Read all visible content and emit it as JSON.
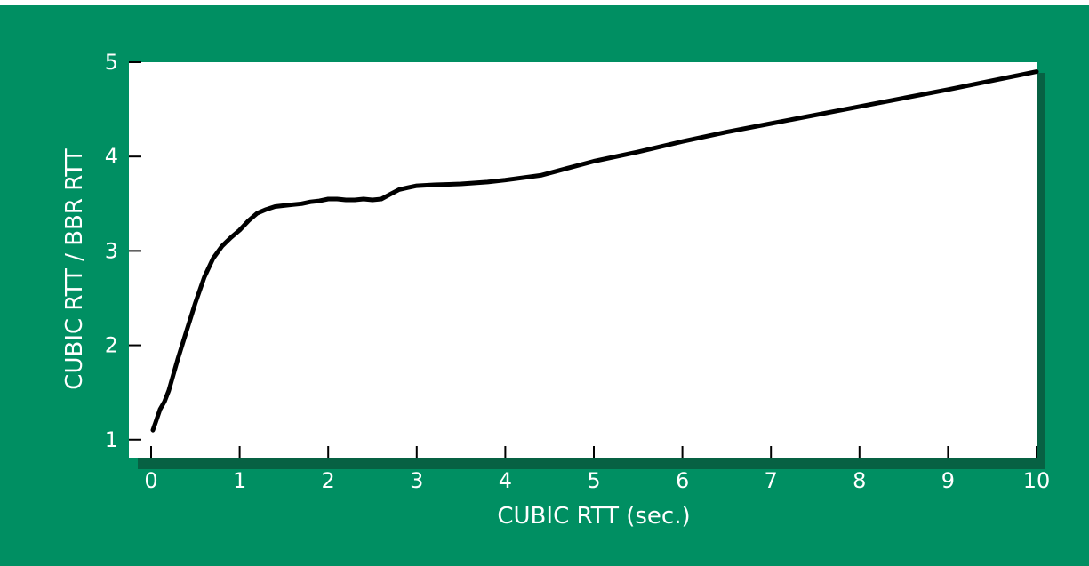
{
  "colors": {
    "panel": "#008f62",
    "plot_bg": "#ffffff",
    "line": "#000000",
    "text": "#ffffff",
    "shadow": "#0c3d2a"
  },
  "chart_data": {
    "type": "line",
    "xlabel": "CUBIC RTT (sec.)",
    "ylabel": "CUBIC RTT / BBR RTT",
    "xlim": [
      0,
      10
    ],
    "ylim": [
      0.8,
      5
    ],
    "xticks": [
      "0",
      "1",
      "2",
      "3",
      "4",
      "5",
      "6",
      "7",
      "8",
      "9",
      "10"
    ],
    "yticks": [
      "1",
      "2",
      "3",
      "4",
      "5"
    ],
    "grid": false,
    "series": [
      {
        "x": [
          0.02,
          0.05,
          0.1,
          0.15,
          0.2,
          0.3,
          0.4,
          0.5,
          0.6,
          0.7,
          0.8,
          0.9,
          1.0,
          1.1,
          1.2,
          1.3,
          1.4,
          1.5,
          1.6,
          1.7,
          1.8,
          1.9,
          2.0,
          2.1,
          2.2,
          2.3,
          2.4,
          2.5,
          2.6,
          2.7,
          2.8,
          2.9,
          3.0,
          3.2,
          3.5,
          3.8,
          4.0,
          4.4,
          5.0,
          5.5,
          6.0,
          6.5,
          7.0,
          8.0,
          9.0,
          10.0
        ],
        "y": [
          1.1,
          1.18,
          1.32,
          1.4,
          1.52,
          1.85,
          2.15,
          2.45,
          2.72,
          2.92,
          3.05,
          3.14,
          3.22,
          3.32,
          3.4,
          3.44,
          3.47,
          3.48,
          3.49,
          3.5,
          3.52,
          3.53,
          3.55,
          3.55,
          3.54,
          3.54,
          3.55,
          3.54,
          3.55,
          3.6,
          3.65,
          3.67,
          3.69,
          3.7,
          3.71,
          3.73,
          3.75,
          3.8,
          3.95,
          4.05,
          4.16,
          4.26,
          4.35,
          4.53,
          4.71,
          4.9
        ]
      }
    ]
  }
}
